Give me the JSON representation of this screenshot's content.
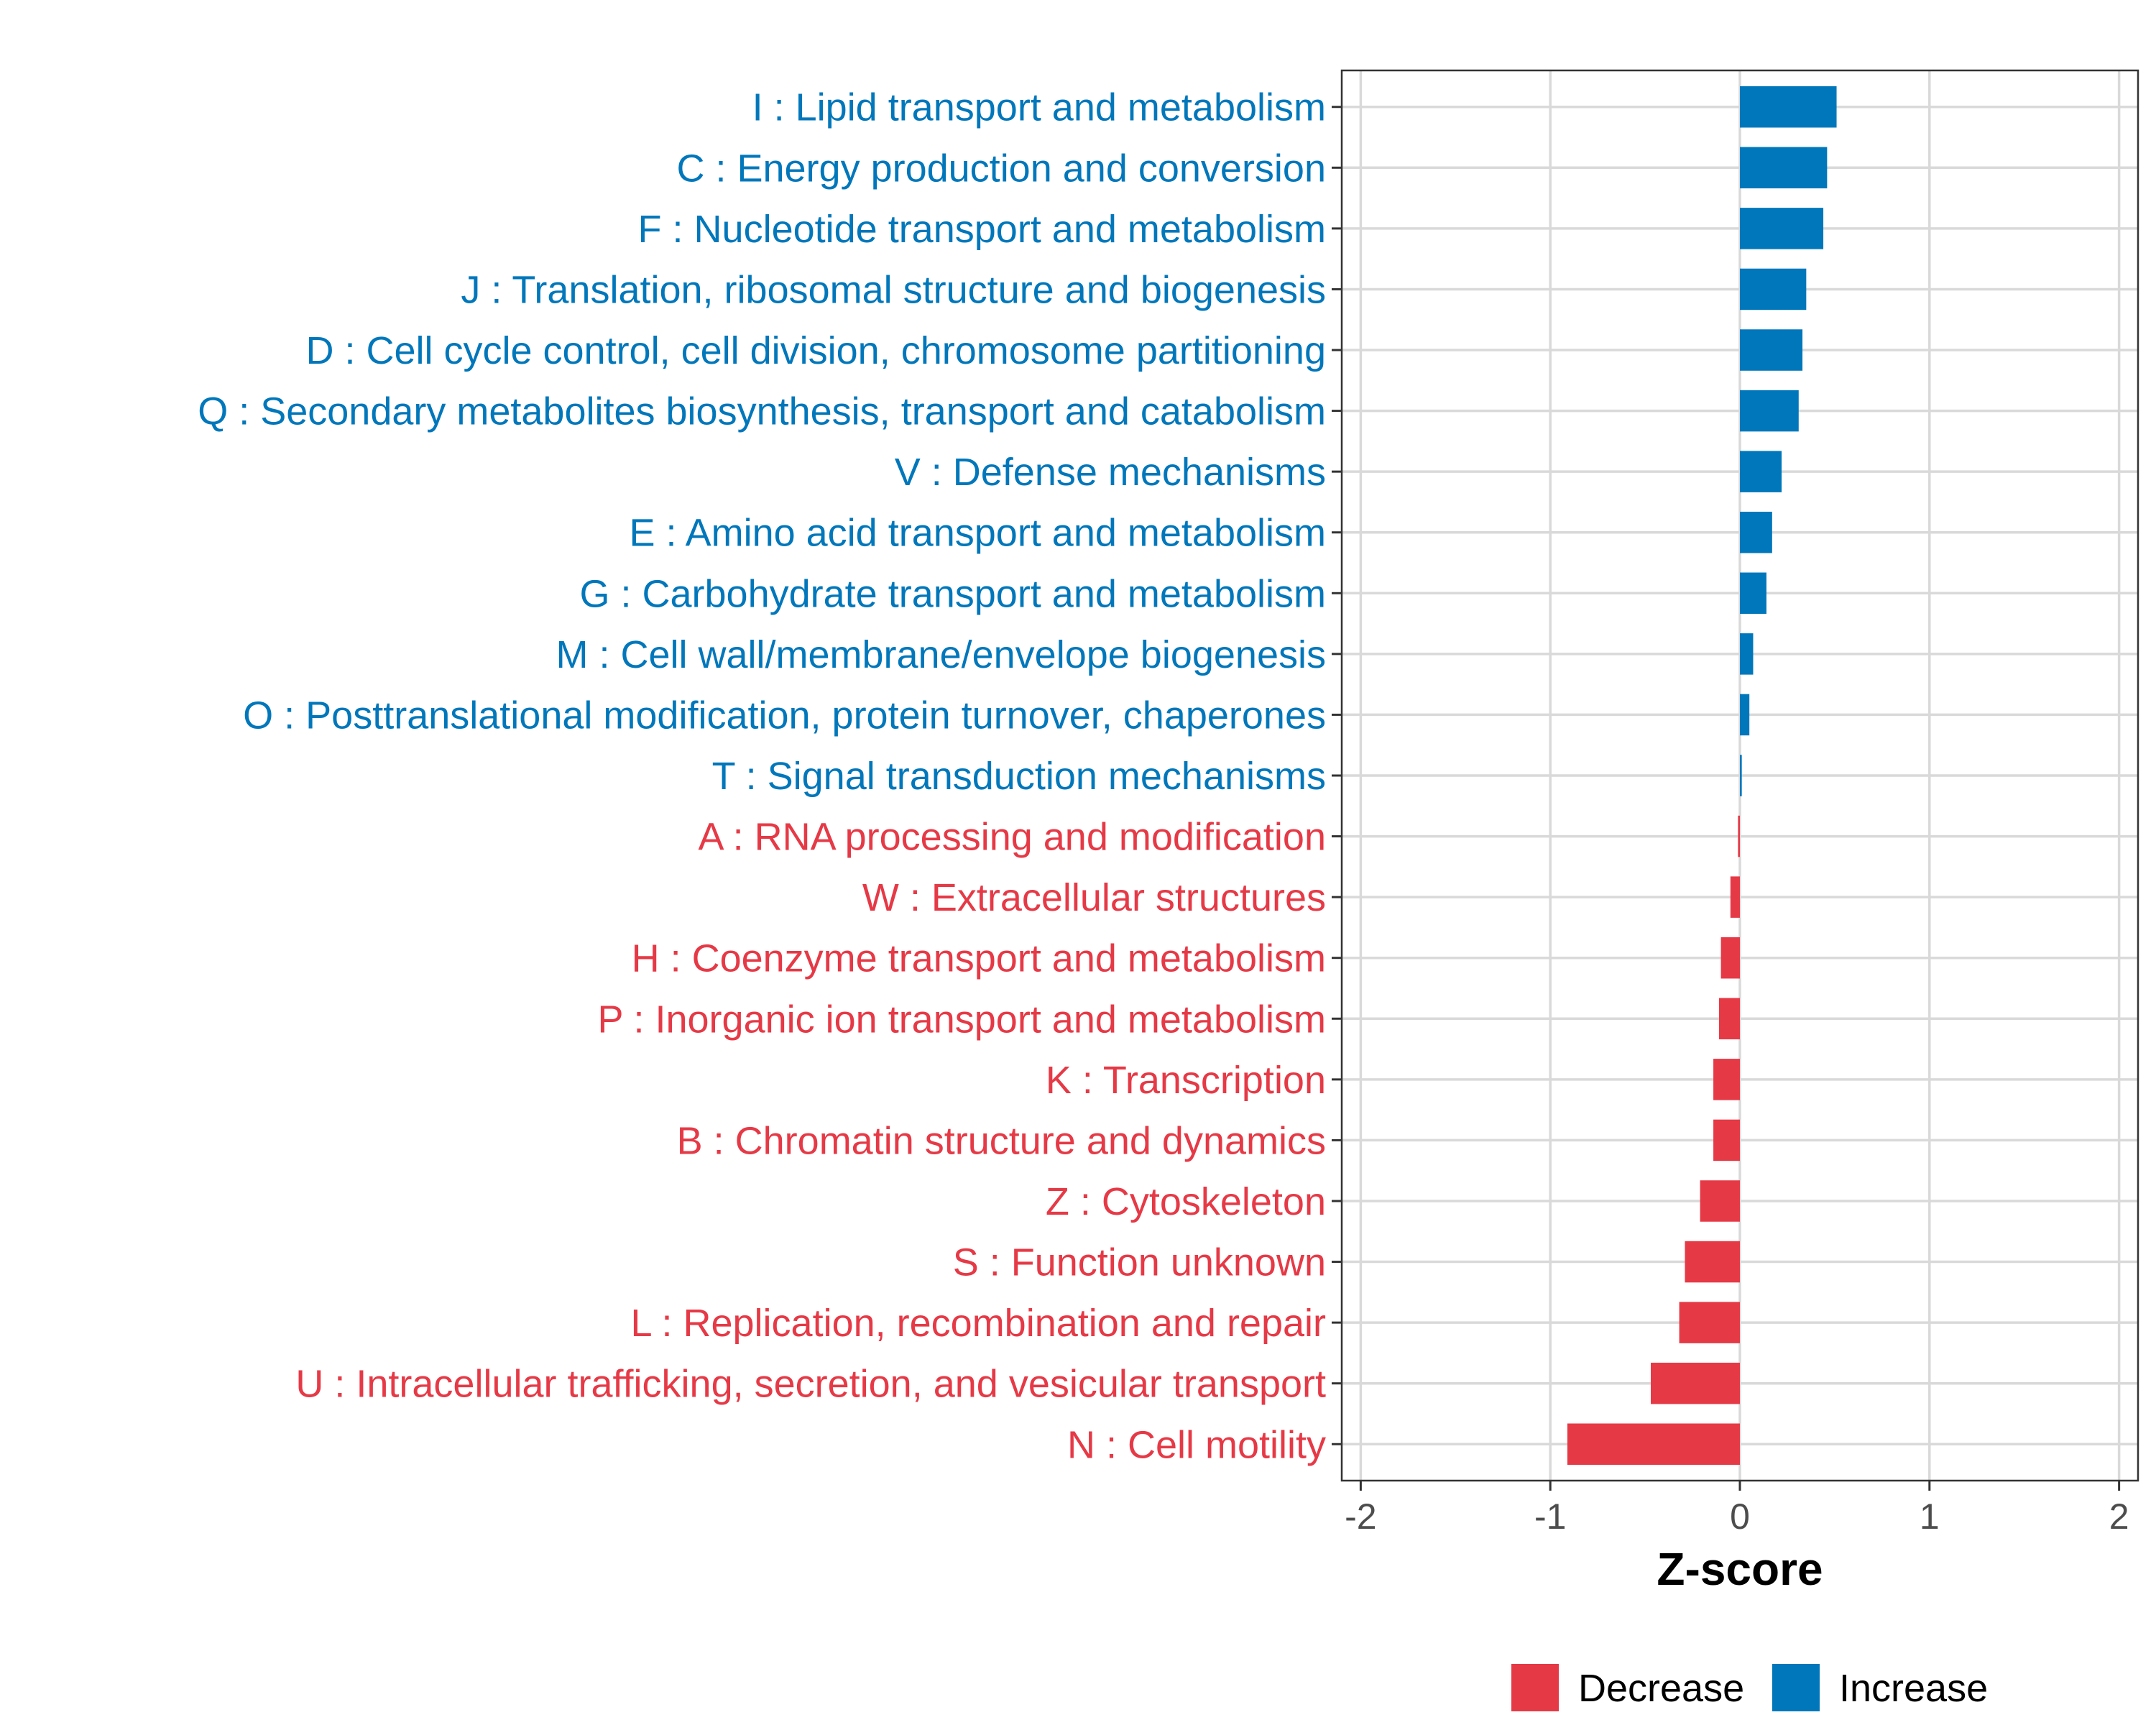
{
  "chart_data": {
    "type": "bar",
    "orientation": "horizontal",
    "xlabel": "Z-score",
    "ylabel": "",
    "xlim": [
      -2.1,
      2.1
    ],
    "xticks": [
      -2,
      -1,
      0,
      1,
      2
    ],
    "grid": true,
    "legend_position": "bottom",
    "colors": {
      "Decrease": "#e63946",
      "Increase": "#0077bb"
    },
    "legend": [
      {
        "label": "Decrease",
        "color": "#e63946"
      },
      {
        "label": "Increase",
        "color": "#0077bb"
      }
    ],
    "categories": [
      "I : Lipid transport and metabolism",
      "C : Energy production and conversion",
      "F : Nucleotide transport and metabolism",
      "J : Translation, ribosomal structure and biogenesis",
      "D : Cell cycle control, cell division, chromosome partitioning",
      "Q : Secondary metabolites biosynthesis, transport and catabolism",
      "V : Defense mechanisms",
      "E : Amino acid transport and metabolism",
      "G : Carbohydrate transport and metabolism",
      "M : Cell wall/membrane/envelope biogenesis",
      "O : Posttranslational modification, protein turnover, chaperones",
      "T : Signal transduction mechanisms",
      "A : RNA processing and modification",
      "W : Extracellular structures",
      "H : Coenzyme transport and metabolism",
      "P : Inorganic ion transport and metabolism",
      "K : Transcription",
      "B : Chromatin structure and dynamics",
      "Z : Cytoskeleton",
      "S : Function unknown",
      "L : Replication, recombination and repair",
      "U : Intracellular trafficking, secretion, and vesicular transport",
      "N : Cell motility"
    ],
    "values": [
      0.51,
      0.46,
      0.44,
      0.35,
      0.33,
      0.31,
      0.22,
      0.17,
      0.14,
      0.07,
      0.05,
      0.01,
      -0.01,
      -0.05,
      -0.1,
      -0.11,
      -0.14,
      -0.14,
      -0.21,
      -0.29,
      -0.32,
      -0.47,
      -0.91
    ],
    "groups": [
      "Increase",
      "Increase",
      "Increase",
      "Increase",
      "Increase",
      "Increase",
      "Increase",
      "Increase",
      "Increase",
      "Increase",
      "Increase",
      "Increase",
      "Decrease",
      "Decrease",
      "Decrease",
      "Decrease",
      "Decrease",
      "Decrease",
      "Decrease",
      "Decrease",
      "Decrease",
      "Decrease",
      "Decrease"
    ]
  }
}
